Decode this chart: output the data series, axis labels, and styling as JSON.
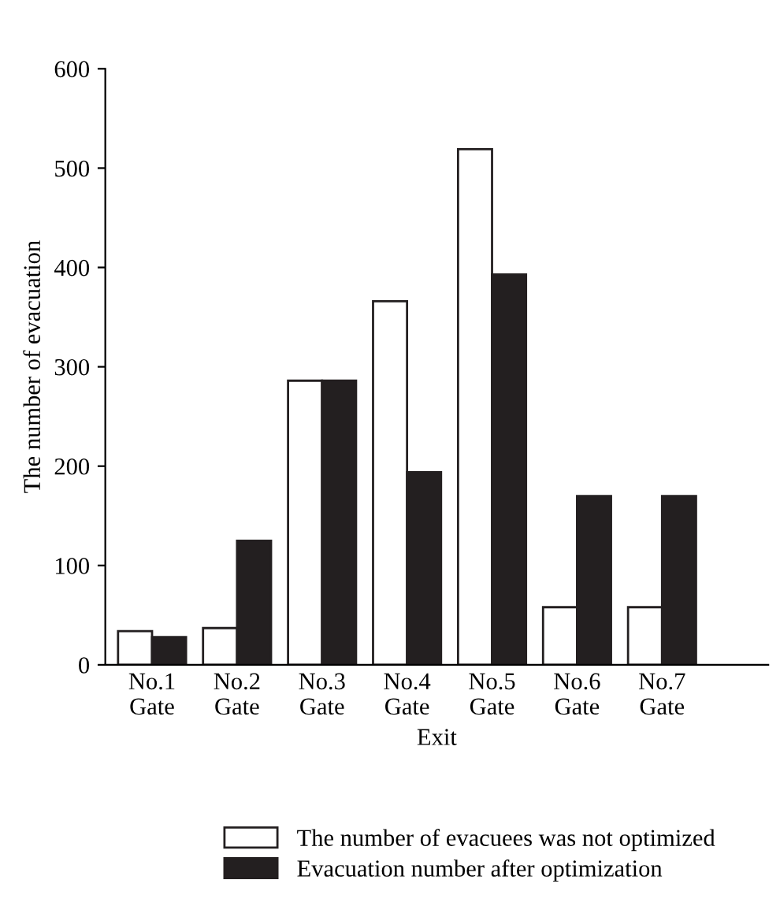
{
  "chart_data": {
    "type": "bar",
    "xlabel": "Exit",
    "ylabel": "The number of evacuation",
    "categories": [
      "No.1\nGate",
      "No.2\nGate",
      "No.3\nGate",
      "No.4\nGate",
      "No.5\nGate",
      "No.6\nGate",
      "No.7\nGate"
    ],
    "series": [
      {
        "name": "The number of evacuees was not optimized",
        "color": "#ffffff",
        "values": [
          34,
          37,
          286,
          366,
          519,
          58,
          58
        ]
      },
      {
        "name": "Evacuation number after optimization",
        "color": "#231f20",
        "values": [
          28,
          125,
          286,
          194,
          393,
          170,
          170
        ]
      }
    ],
    "ylim": [
      0,
      600
    ],
    "yticks": [
      0,
      100,
      200,
      300,
      400,
      500,
      600
    ],
    "grid": false,
    "legend": "bottom"
  }
}
